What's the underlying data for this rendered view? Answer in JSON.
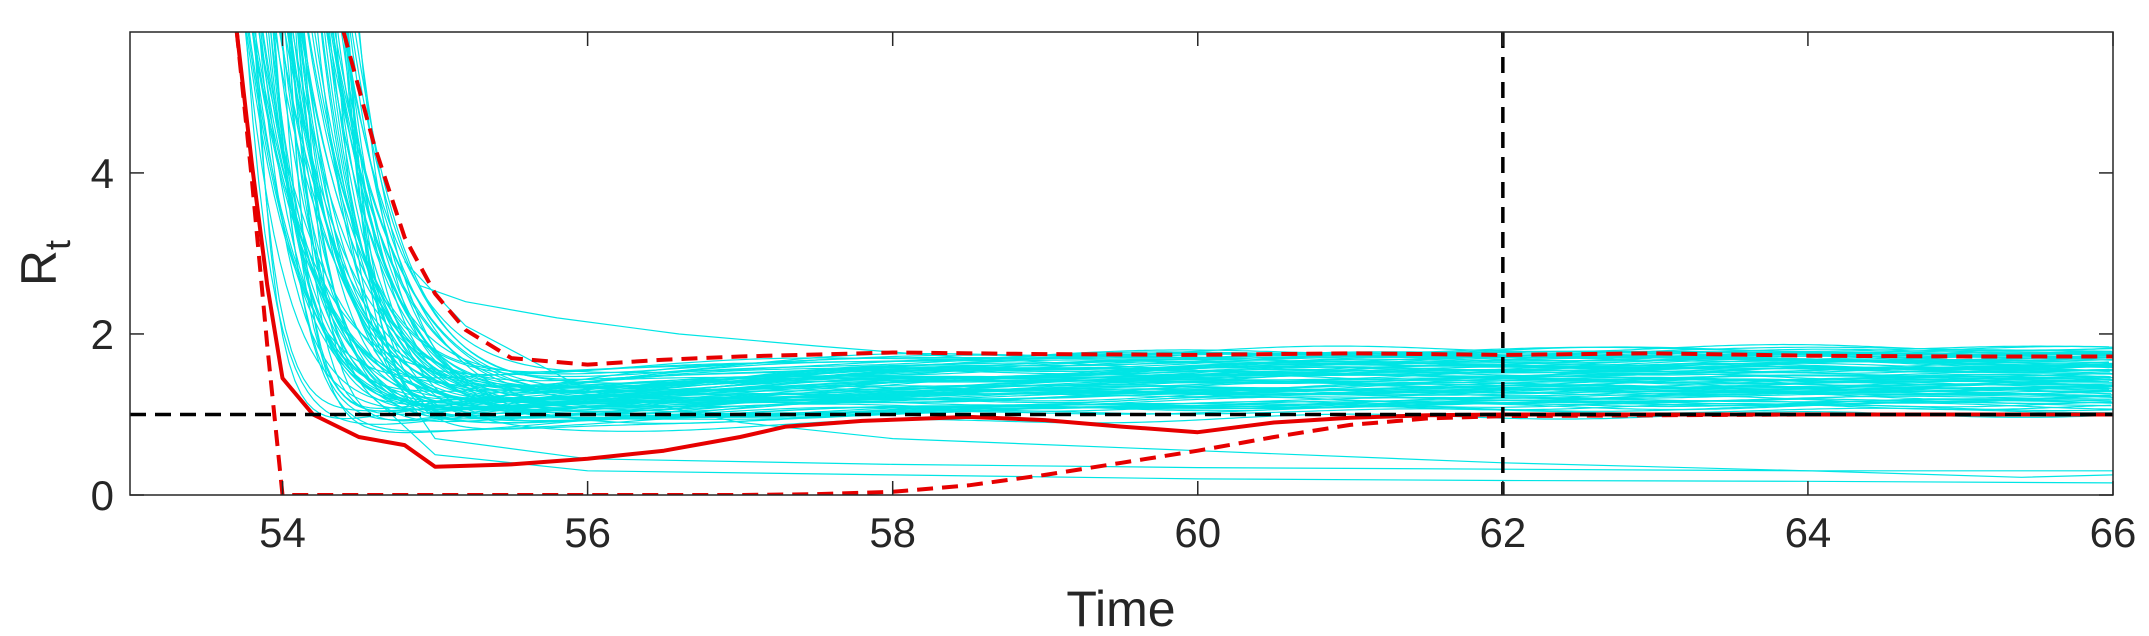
{
  "chart_data": {
    "type": "line",
    "xlabel": "Time",
    "ylabel": {
      "main": "R",
      "sub": "t"
    },
    "xlim": [
      53,
      66
    ],
    "ylim": [
      0,
      5.75
    ],
    "xticks": [
      54,
      56,
      58,
      60,
      62,
      64,
      66
    ],
    "yticks": [
      0,
      2,
      4
    ],
    "grid": false,
    "box": true,
    "reference_lines": [
      {
        "orientation": "horizontal",
        "value": 1,
        "style": "dashed",
        "color": "#000000"
      },
      {
        "orientation": "vertical",
        "value": 62,
        "style": "dashed",
        "color": "#000000"
      }
    ],
    "colors": {
      "ensemble": "#00e5e5",
      "summary": "#e60000",
      "reference": "#000000",
      "axis": "#262626"
    },
    "ensemble": {
      "count": 90,
      "start_x": [
        53.7,
        54.45
      ],
      "min_level": [
        0.55,
        0.95
      ],
      "plateau_level": [
        1.0,
        1.85
      ],
      "notable_members": [
        {
          "x": [
            54.9,
            55.2,
            55.8,
            56.6,
            57.5,
            58.5,
            60,
            62,
            64,
            66
          ],
          "y": [
            2.6,
            2.4,
            2.2,
            2.0,
            1.85,
            1.7,
            1.55,
            1.45,
            1.42,
            1.4
          ]
        },
        {
          "x": [
            54.8,
            55.2,
            56,
            57,
            58,
            60,
            62,
            64,
            65.4,
            66
          ],
          "y": [
            2.9,
            2.1,
            1.3,
            0.9,
            0.7,
            0.55,
            0.4,
            0.3,
            0.22,
            0.25
          ]
        },
        {
          "x": [
            54.6,
            55,
            56,
            58,
            60,
            62,
            64,
            66
          ],
          "y": [
            1.2,
            0.5,
            0.3,
            0.25,
            0.2,
            0.18,
            0.17,
            0.15
          ]
        },
        {
          "x": [
            54.3,
            54.6,
            55,
            56,
            58,
            60,
            62,
            64,
            66
          ],
          "y": [
            4.5,
            1.8,
            0.7,
            0.45,
            0.38,
            0.34,
            0.32,
            0.3,
            0.3
          ]
        }
      ]
    },
    "series": [
      {
        "style": "solid",
        "x": [
          53.7,
          53.8,
          53.9,
          54.0,
          54.2,
          54.5,
          54.8,
          55.0,
          55.5,
          56.0,
          56.5,
          57.0,
          57.3,
          57.8,
          58.5,
          59.0,
          59.5,
          60.0,
          60.5,
          61.0,
          61.5,
          62.0,
          63.0,
          64.0,
          65.0,
          66.0
        ],
        "y": [
          5.75,
          4.1,
          2.6,
          1.45,
          1.0,
          0.72,
          0.62,
          0.35,
          0.38,
          0.45,
          0.55,
          0.72,
          0.85,
          0.92,
          0.97,
          0.93,
          0.85,
          0.78,
          0.9,
          0.96,
          0.99,
          1.0,
          1.0,
          1.0,
          1.0,
          1.0
        ]
      },
      {
        "style": "dashed",
        "x": [
          54.4,
          54.6,
          54.8,
          55.0,
          55.2,
          55.5,
          56.0,
          56.5,
          57.0,
          58.0,
          59.0,
          60.0,
          61.0,
          62.0,
          63.0,
          64.0,
          65.0,
          66.0
        ],
        "y": [
          5.75,
          4.35,
          3.2,
          2.5,
          2.05,
          1.7,
          1.62,
          1.68,
          1.72,
          1.77,
          1.75,
          1.74,
          1.76,
          1.74,
          1.76,
          1.73,
          1.72,
          1.72
        ]
      },
      {
        "style": "dashed",
        "x": [
          53.7,
          53.8,
          53.9,
          54.0,
          54.3,
          55.0,
          56.0,
          57.0,
          57.5,
          58.0,
          58.5,
          59.0,
          59.5,
          60.0,
          60.5,
          61.0,
          61.5,
          62.0,
          64.0,
          66.0
        ],
        "y": [
          5.75,
          3.9,
          1.85,
          0.0,
          0.0,
          0.0,
          0.0,
          0.0,
          0.01,
          0.04,
          0.12,
          0.25,
          0.4,
          0.55,
          0.72,
          0.87,
          0.95,
          0.98,
          1.0,
          1.0
        ]
      }
    ]
  }
}
